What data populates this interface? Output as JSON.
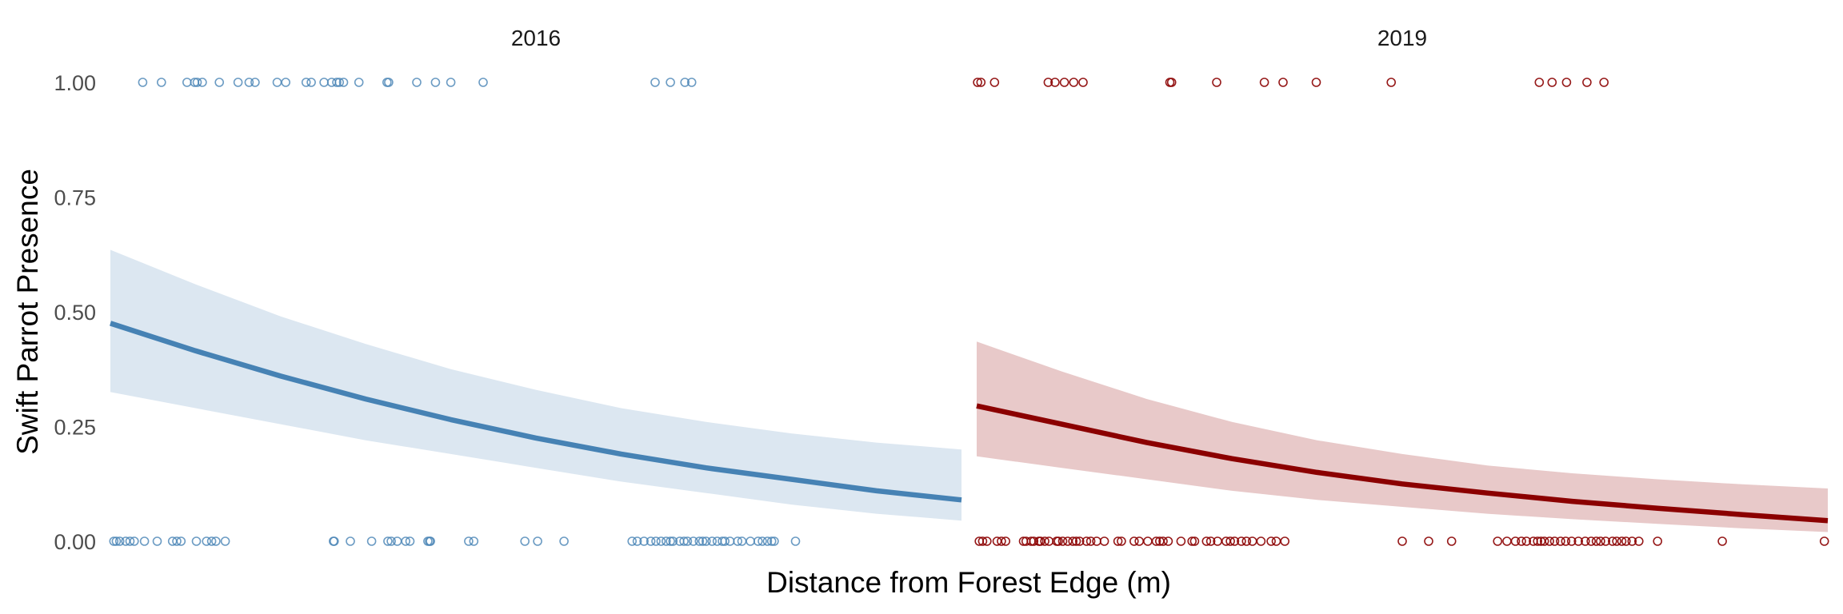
{
  "chart_data": {
    "type": "scatter",
    "title": "",
    "xlabel": "Distance from Forest Edge (m)",
    "ylabel": "Swift Parrot Presence",
    "y_ticks": [
      "0.00",
      "0.25",
      "0.50",
      "0.75",
      "1.00"
    ],
    "ylim": [
      0,
      1
    ],
    "grid": false,
    "legend": "none",
    "panels": [
      {
        "name": "2016",
        "color": "#4682b4",
        "band_color": "#dce7f1",
        "xlim": [
          0,
          1000
        ],
        "fit": {
          "x": [
            0,
            100,
            200,
            300,
            400,
            500,
            600,
            700,
            800,
            900,
            1000
          ],
          "y": [
            0.475,
            0.415,
            0.36,
            0.31,
            0.265,
            0.225,
            0.19,
            0.16,
            0.135,
            0.11,
            0.09
          ],
          "lower": [
            0.325,
            0.29,
            0.255,
            0.22,
            0.19,
            0.16,
            0.13,
            0.105,
            0.08,
            0.06,
            0.045
          ],
          "upper": [
            0.635,
            0.56,
            0.49,
            0.43,
            0.375,
            0.33,
            0.29,
            0.26,
            0.235,
            0.215,
            0.2
          ]
        },
        "points_present": [
          38,
          60,
          90,
          99,
          102,
          108,
          128,
          150,
          163,
          170,
          196,
          206,
          230,
          236,
          251,
          260,
          266,
          269,
          274,
          292,
          325,
          327,
          360,
          382,
          400,
          438,
          640,
          658,
          675,
          683
        ],
        "points_absent": [
          4,
          7,
          11,
          18,
          23,
          28,
          40,
          55,
          73,
          78,
          83,
          101,
          113,
          119,
          124,
          135,
          262,
          263,
          282,
          307,
          326,
          330,
          337,
          347,
          352,
          373,
          375,
          376,
          421,
          427,
          487,
          502,
          533,
          613,
          619,
          627,
          635,
          641,
          647,
          653,
          658,
          661,
          669,
          674,
          678,
          685,
          692,
          696,
          700,
          707,
          713,
          719,
          722,
          728,
          737,
          742,
          752,
          761,
          766,
          772,
          777,
          780,
          805
        ]
      },
      {
        "name": "2019",
        "color": "#8b0000",
        "band_color": "#e8c9c9",
        "xlim": [
          0,
          1000
        ],
        "fit": {
          "x": [
            0,
            100,
            200,
            300,
            400,
            500,
            600,
            700,
            800,
            900,
            1000
          ],
          "y": [
            0.295,
            0.255,
            0.215,
            0.18,
            0.15,
            0.125,
            0.105,
            0.087,
            0.072,
            0.058,
            0.045
          ],
          "lower": [
            0.185,
            0.16,
            0.135,
            0.11,
            0.09,
            0.075,
            0.06,
            0.048,
            0.038,
            0.028,
            0.02
          ],
          "upper": [
            0.435,
            0.37,
            0.31,
            0.26,
            0.22,
            0.19,
            0.165,
            0.148,
            0.135,
            0.124,
            0.115
          ]
        },
        "points_present": [
          1,
          5,
          21,
          84,
          92,
          103,
          114,
          125,
          227,
          229,
          282,
          338,
          360,
          399,
          487,
          661,
          676,
          693,
          717,
          737
        ],
        "points_absent": [
          3,
          7,
          12,
          24,
          29,
          34,
          55,
          58,
          64,
          67,
          73,
          75,
          80,
          85,
          94,
          96,
          101,
          107,
          113,
          117,
          121,
          129,
          134,
          141,
          150,
          166,
          170,
          185,
          191,
          201,
          211,
          215,
          219,
          225,
          240,
          253,
          256,
          270,
          275,
          283,
          293,
          298,
          303,
          311,
          317,
          324,
          334,
          346,
          352,
          362,
          500,
          531,
          558,
          612,
          623,
          633,
          640,
          646,
          654,
          659,
          663,
          667,
          673,
          679,
          686,
          692,
          699,
          707,
          715,
          722,
          728,
          733,
          739,
          747,
          752,
          758,
          763,
          770,
          778,
          800,
          876,
          996
        ]
      }
    ]
  }
}
